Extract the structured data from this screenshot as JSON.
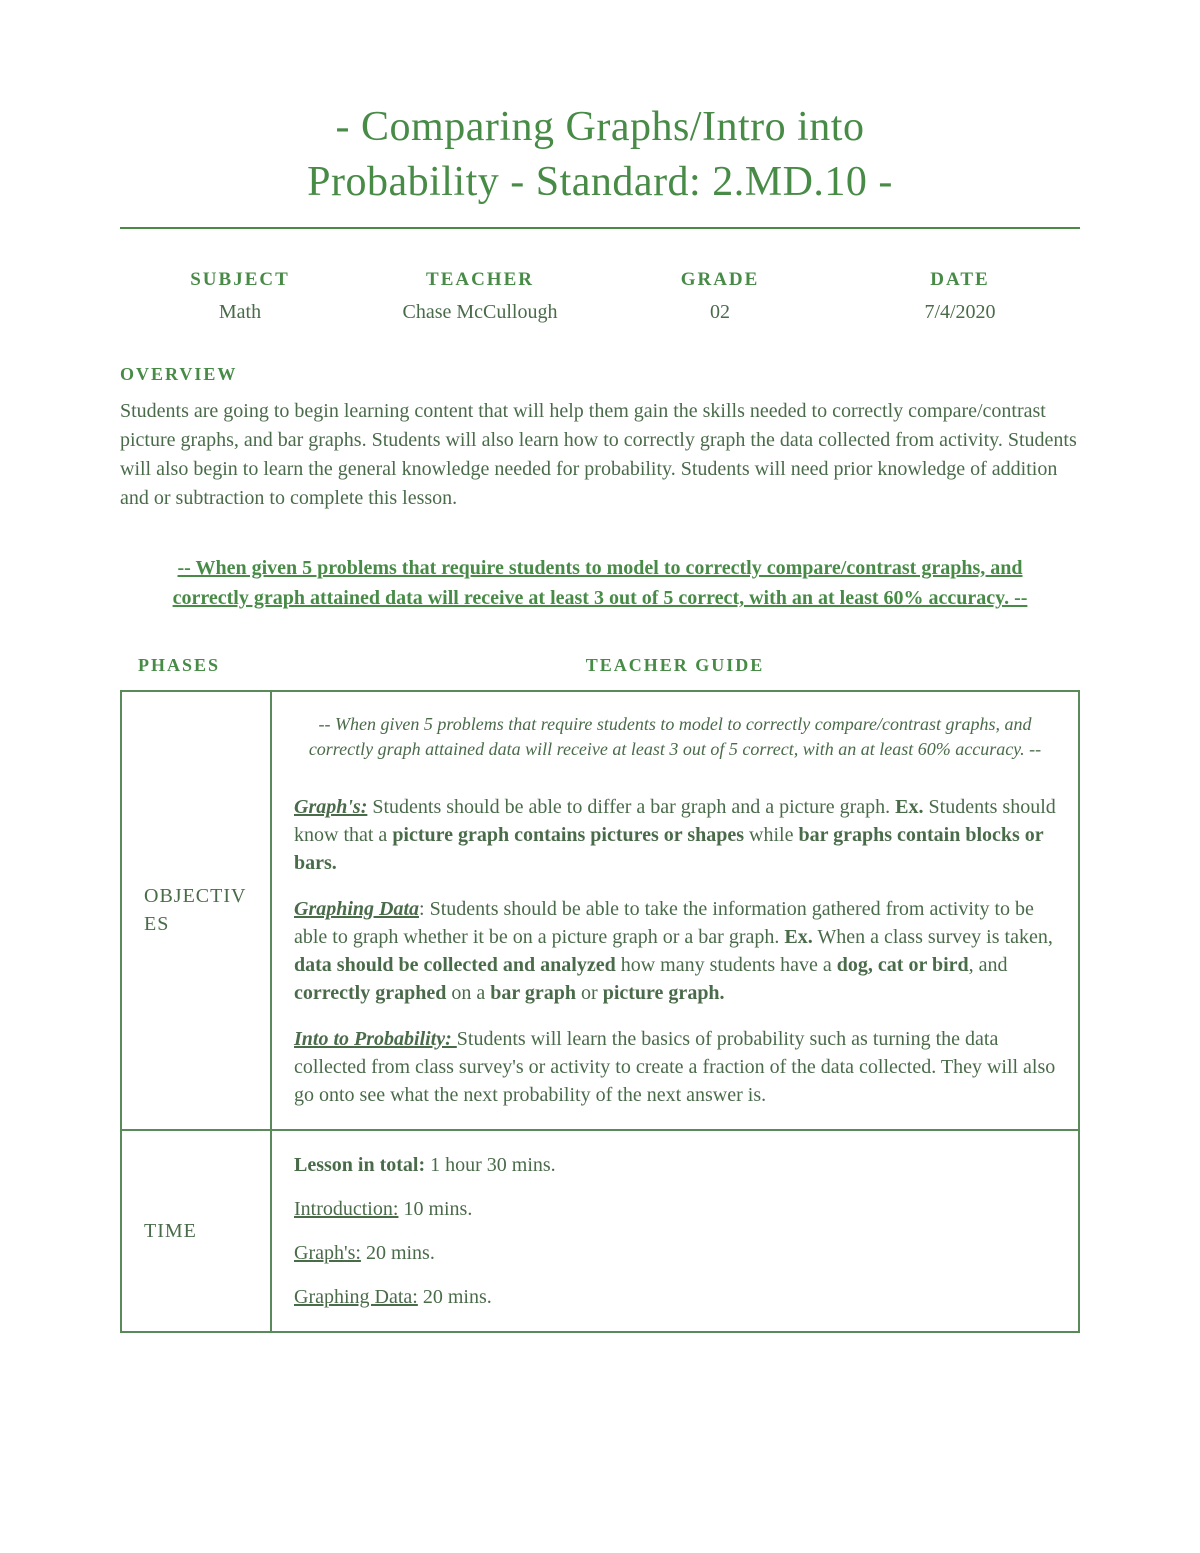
{
  "title_line1": "- Comparing Graphs/Intro into",
  "title_line2": "Probability - Standard: 2.MD.10 -",
  "meta": {
    "headers": {
      "subject": "SUBJECT",
      "teacher": "TEACHER",
      "grade": "GRADE",
      "date": "DATE"
    },
    "values": {
      "subject": "Math",
      "teacher": "Chase McCullough",
      "grade": "02",
      "date": "7/4/2020"
    }
  },
  "overview": {
    "heading": "OVERVIEW",
    "text": "Students are going to begin learning content that will help them gain the skills needed to correctly compare/contrast picture graphs, and bar graphs. Students will also learn how to correctly graph the data collected from activity. Students will also begin to learn the general knowledge needed for probability. Students will need prior knowledge of addition and or subtraction to complete this lesson."
  },
  "objective_banner": "-- When given 5 problems that require students to model to correctly compare/contrast graphs, and correctly graph attained data will receive at least 3 out of 5 correct, with an at least 60% accuracy. --",
  "guide_headers": {
    "left": "PHASES",
    "right": "TEACHER GUIDE"
  },
  "phases": {
    "objectives": {
      "label": "OBJECTIVES",
      "italic": "-- When given 5 problems that require students to model to correctly compare/contrast graphs, and correctly graph attained data will receive at least 3 out of 5 correct, with an at least 60% accuracy. --",
      "graphs_label": "Graph's:",
      "graphs_1": " Students should be able to differ a bar graph and a picture graph. ",
      "graphs_ex": "Ex.",
      "graphs_2": " Students should know that a ",
      "graphs_bold1": "picture graph contains pictures or shapes",
      "graphs_3": " while ",
      "graphs_bold2": "bar graphs contain blocks or bars.",
      "gdata_label": "Graphing Data",
      "gdata_1": ": Students should be able to take the information gathered from activity to be able to graph whether it be on a picture graph or a bar graph. ",
      "gdata_ex": "Ex.",
      "gdata_2": " When a class survey is taken, ",
      "gdata_bold1": "data should be collected and analyzed",
      "gdata_3": " how many students have a ",
      "gdata_bold2": "dog, cat or bird",
      "gdata_4": ", and ",
      "gdata_bold3": "correctly graphed",
      "gdata_5": " on a ",
      "gdata_bold4": "bar graph",
      "gdata_6": " or ",
      "gdata_bold5": "picture graph.",
      "prob_label": "Into to Probability: ",
      "prob_text": " Students will learn the basics of probability such as turning the data collected from class survey's or activity to create a fraction of the data collected. They will also go onto see what the next probability of the next answer is."
    },
    "time": {
      "label": "TIME",
      "total_label": "Lesson in total:",
      "total_val": " 1 hour 30 mins.",
      "intro_label": "Introduction:",
      "intro_val": " 10 mins.",
      "graphs_label": "Graph's:",
      "graphs_val": " 20 mins.",
      "gdata_label": "Graphing Data:",
      "gdata_val": " 20 mins."
    }
  },
  "colors": {
    "accent": "#478b47",
    "body_text": "#4a6b4a",
    "border": "#5a8a5a",
    "background": "#ffffff"
  }
}
